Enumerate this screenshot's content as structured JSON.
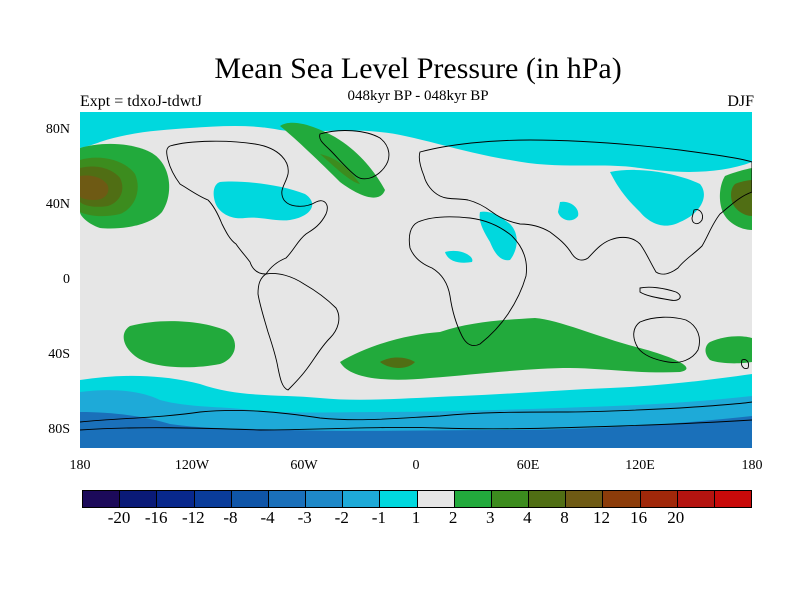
{
  "header": {
    "title": "Mean Sea Level Pressure (in hPa)",
    "subtitle": "048kyr BP - 048kyr BP",
    "expt": "Expt = tdxoJ-tdwtJ",
    "season": "DJF"
  },
  "axes": {
    "y_ticks": [
      "80N",
      "40N",
      "0",
      "40S",
      "80S"
    ],
    "x_ticks": [
      "180",
      "120W",
      "60W",
      "0",
      "60E",
      "120E",
      "180"
    ]
  },
  "colorbar": {
    "colors": [
      "#1c0a5a",
      "#0a1a78",
      "#08288c",
      "#0a3c9a",
      "#0f55a8",
      "#1a70ba",
      "#1e88c8",
      "#1eaad8",
      "#00d8de",
      "#e6e6e6",
      "#22aa3c",
      "#3c8c1e",
      "#506e14",
      "#6e5a14",
      "#8c3c0a",
      "#a0280a",
      "#b41410",
      "#c80a0a"
    ],
    "labels": [
      "-20",
      "-16",
      "-12",
      "-8",
      "-4",
      "-3",
      "-2",
      "-1",
      "1",
      "2",
      "3",
      "4",
      "8",
      "12",
      "16",
      "20"
    ]
  },
  "map_colors": {
    "background": "#e6e6e6",
    "neg1": "#00d8de",
    "neg2": "#1eaad8",
    "neg3": "#1a70ba",
    "pos1": "#22aa3c",
    "pos2": "#3c8c1e",
    "pos3": "#506e14",
    "pos4": "#6e5a14",
    "coast": "#000000"
  }
}
